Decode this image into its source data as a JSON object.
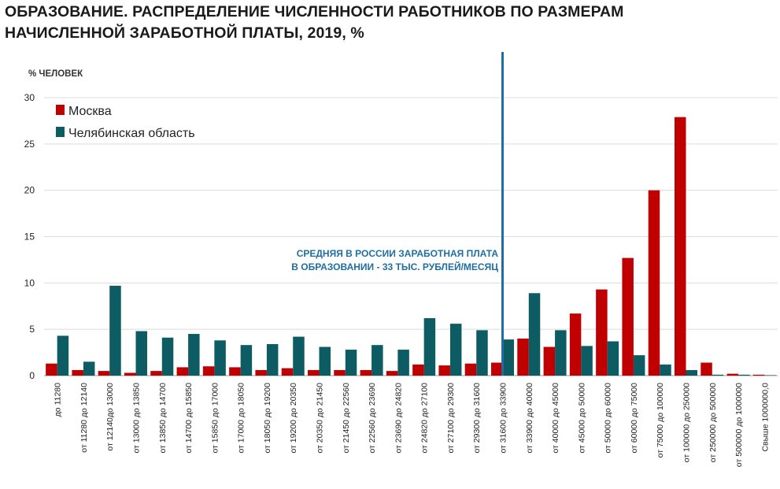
{
  "chart_data": {
    "type": "bar",
    "title_lines": [
      "ОБРАЗОВАНИЕ. РАСПРЕДЕЛЕНИЕ ЧИСЛЕННОСТИ РАБОТНИКОВ ПО РАЗМЕРАМ",
      "НАЧИСЛЕННОЙ ЗАРАБОТНОЙ ПЛАТЫ, 2019, %"
    ],
    "ylabel": "% ЧЕЛОВЕК",
    "ylim": [
      0,
      30
    ],
    "yticks": [
      0,
      5,
      10,
      15,
      20,
      25,
      30
    ],
    "grid": true,
    "legend_position": "top-left",
    "categories": [
      "до  11280",
      "от 11280 до 12140",
      "от 12140до 13000",
      "от 13000 до 13850",
      "от 13850 до 14700",
      "от 14700 до 15850",
      "от 15850 до 17000",
      "от 17000  до 18050",
      "от 18050 до 19200",
      "от 19200 до 20350",
      "от 20350 до 21450",
      "от 21450 до 22560",
      "от 22560 до 23690",
      "от 23690 до 24820",
      "от 24820 до 27100",
      "от 27100 до 29300",
      "от 29300 до 31600",
      "от 31600 до 33900",
      "от 33900 до 40000",
      "от 40000 до 45000",
      "от 45000 до 50000",
      "от 50000 до 60000",
      "от 60000 до 75000",
      "от 75000 до 100000",
      "от 100000 до 250000",
      "от 250000 до 500000",
      "от 500000 до 1000000",
      "Свыше 1000000,0"
    ],
    "series": [
      {
        "name": "Москва",
        "color": "#c00000",
        "values": [
          1.3,
          0.6,
          0.5,
          0.3,
          0.5,
          0.9,
          1.0,
          0.9,
          0.6,
          0.8,
          0.6,
          0.6,
          0.6,
          0.5,
          1.2,
          1.1,
          1.3,
          1.4,
          4.0,
          3.1,
          6.7,
          9.3,
          12.7,
          20.0,
          27.9,
          1.4,
          0.2,
          0.1
        ]
      },
      {
        "name": "Челябинская область",
        "color": "#0d5c63",
        "values": [
          4.3,
          1.5,
          9.7,
          4.8,
          4.1,
          4.5,
          3.8,
          3.3,
          3.4,
          4.2,
          3.1,
          2.8,
          3.3,
          2.8,
          6.2,
          5.6,
          4.9,
          3.9,
          8.9,
          4.9,
          3.2,
          3.7,
          2.2,
          1.2,
          0.6,
          0.1,
          0.1,
          0.05
        ]
      }
    ],
    "annotation": {
      "lines": [
        "СРЕДНЯЯ В РОССИИ ЗАРАБОТНАЯ ПЛАТА",
        "В ОБРАЗОВАНИИ - 33 ТЫС. РУБЛЕЙ/МЕСЯЦ"
      ],
      "category_index": 17,
      "color": "#1f6ea3"
    }
  }
}
